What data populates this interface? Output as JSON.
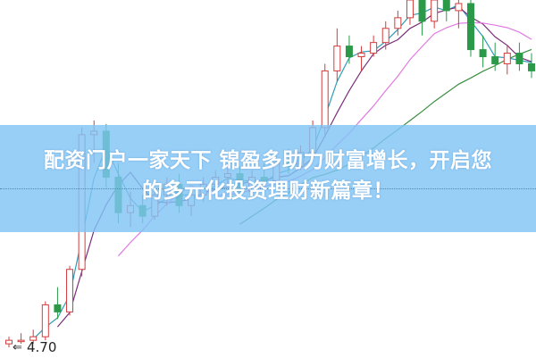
{
  "headline": {
    "line1": "配资门户一家天下 锦盈多助力财富增长，开启您",
    "line2": "的多元化投资理财新篇章！"
  },
  "chart_data": {
    "type": "candlestick",
    "title": "",
    "xlabel": "",
    "ylabel": "",
    "ylim": [
      4.67,
      5.68
    ],
    "grid": false,
    "price_label": "4.70",
    "colors": {
      "up": "#d43c3c",
      "down": "#2a9a48",
      "ma": [
        "#2f9db5",
        "#7a2f7a",
        "#e07ae0",
        "#3a8f40"
      ]
    },
    "ohlc": [
      [
        4.71,
        4.73,
        4.7,
        4.72
      ],
      [
        4.72,
        4.74,
        4.71,
        4.72
      ],
      [
        4.72,
        4.75,
        4.71,
        4.73
      ],
      [
        4.73,
        4.83,
        4.72,
        4.82
      ],
      [
        4.82,
        4.87,
        4.78,
        4.8
      ],
      [
        4.8,
        4.93,
        4.79,
        4.92
      ],
      [
        4.92,
        5.32,
        4.9,
        5.3
      ],
      [
        5.3,
        5.34,
        5.22,
        5.31
      ],
      [
        5.31,
        5.33,
        5.15,
        5.18
      ],
      [
        5.18,
        5.22,
        5.05,
        5.08
      ],
      [
        5.08,
        5.14,
        5.04,
        5.1
      ],
      [
        5.1,
        5.13,
        5.05,
        5.07
      ],
      [
        5.07,
        5.15,
        5.06,
        5.13
      ],
      [
        5.13,
        5.18,
        5.1,
        5.16
      ],
      [
        5.16,
        5.19,
        5.08,
        5.1
      ],
      [
        5.1,
        5.15,
        5.07,
        5.13
      ],
      [
        5.13,
        5.18,
        5.11,
        5.16
      ],
      [
        5.16,
        5.2,
        5.14,
        5.18
      ],
      [
        5.18,
        5.22,
        5.15,
        5.19
      ],
      [
        5.19,
        5.21,
        5.12,
        5.14
      ],
      [
        5.14,
        5.2,
        5.13,
        5.18
      ],
      [
        5.18,
        5.22,
        5.15,
        5.17
      ],
      [
        5.17,
        5.24,
        5.16,
        5.22
      ],
      [
        5.22,
        5.26,
        5.19,
        5.21
      ],
      [
        5.21,
        5.27,
        5.2,
        5.25
      ],
      [
        5.25,
        5.34,
        5.24,
        5.32
      ],
      [
        5.32,
        5.5,
        5.3,
        5.48
      ],
      [
        5.48,
        5.6,
        5.45,
        5.55
      ],
      [
        5.55,
        5.58,
        5.5,
        5.52
      ],
      [
        5.52,
        5.55,
        5.48,
        5.53
      ],
      [
        5.53,
        5.58,
        5.52,
        5.56
      ],
      [
        5.56,
        5.62,
        5.54,
        5.6
      ],
      [
        5.6,
        5.65,
        5.58,
        5.63
      ],
      [
        5.63,
        5.7,
        5.61,
        5.68
      ],
      [
        5.68,
        5.72,
        5.58,
        5.62
      ],
      [
        5.62,
        5.71,
        5.6,
        5.68
      ],
      [
        5.68,
        5.72,
        5.62,
        5.65
      ],
      [
        5.65,
        5.7,
        5.6,
        5.67
      ],
      [
        5.67,
        5.69,
        5.52,
        5.54
      ],
      [
        5.54,
        5.58,
        5.49,
        5.52
      ],
      [
        5.52,
        5.56,
        5.48,
        5.5
      ],
      [
        5.5,
        5.55,
        5.47,
        5.53
      ],
      [
        5.53,
        5.56,
        5.48,
        5.5
      ],
      [
        5.5,
        5.53,
        5.46,
        5.48
      ]
    ],
    "moving_average_periods": [
      3,
      5,
      10,
      20
    ]
  }
}
